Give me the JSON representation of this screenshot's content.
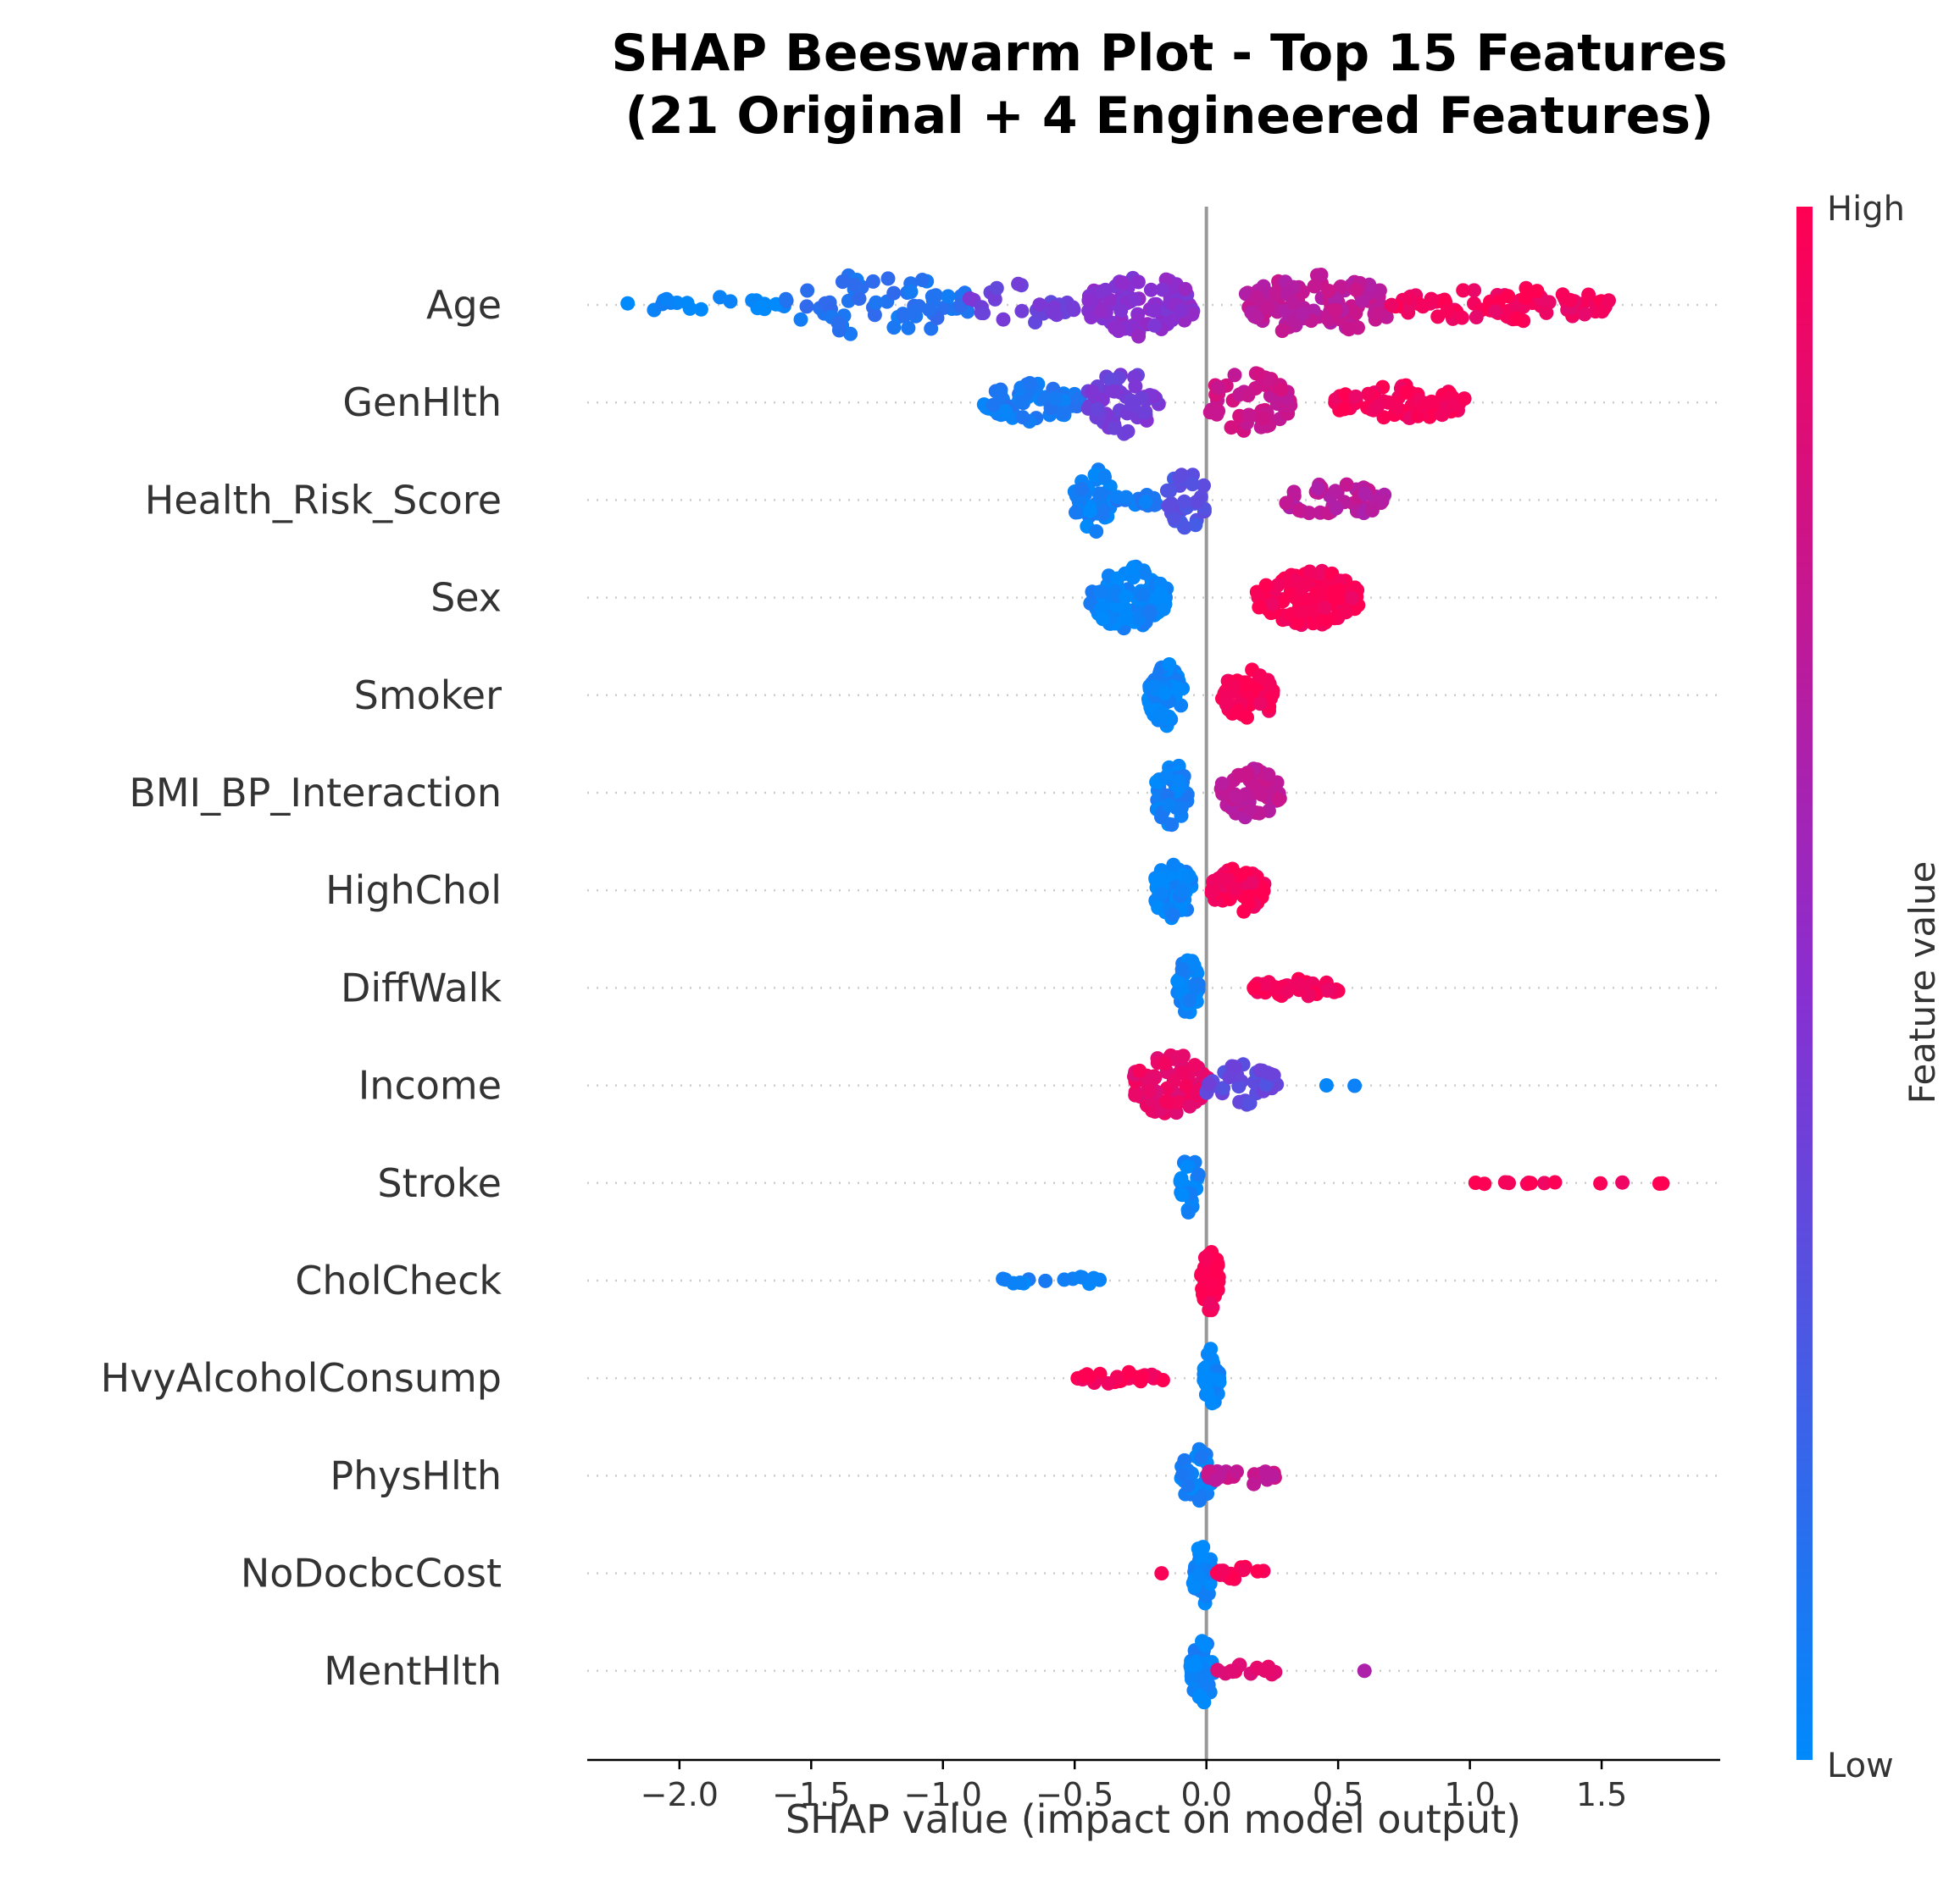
{
  "colors": {
    "low": "#008afb",
    "mid": "#8a2ed0",
    "high": "#ff0052",
    "axis": "#333333",
    "zero_line": "#999999",
    "row_dots": "#cccccc"
  },
  "chart_data": {
    "type": "scatter",
    "subtype": "shap-beeswarm",
    "title_lines": [
      "SHAP Beeswarm Plot - Top 15 Features",
      "(21 Original + 4 Engineered Features)"
    ],
    "xlabel": "SHAP value (impact on model output)",
    "xlim": [
      -2.35,
      1.95
    ],
    "xticks": [
      -2.0,
      -1.5,
      -1.0,
      -0.5,
      0.0,
      0.5,
      1.0,
      1.5
    ],
    "xtick_labels": [
      "−2.0",
      "−1.5",
      "−1.0",
      "−0.5",
      "0.0",
      "0.5",
      "1.0",
      "1.5"
    ],
    "colorbar": {
      "label": "Feature value",
      "high_label": "High",
      "low_label": "Low"
    },
    "features": [
      {
        "name": "Age",
        "groups": [
          {
            "from": -2.2,
            "to": -1.6,
            "n": 22,
            "spread": 0.3,
            "c": 0.02
          },
          {
            "from": -1.6,
            "to": -0.9,
            "n": 60,
            "spread": 1.0,
            "c": 0.12
          },
          {
            "from": -0.9,
            "to": -0.5,
            "n": 30,
            "spread": 0.7,
            "c": 0.4
          },
          {
            "from": -0.45,
            "to": -0.05,
            "n": 90,
            "spread": 1.0,
            "c": 0.5
          },
          {
            "from": 0.15,
            "to": 0.7,
            "n": 110,
            "spread": 1.0,
            "c": 0.72
          },
          {
            "from": 0.7,
            "to": 1.55,
            "n": 90,
            "spread": 0.55,
            "c": 0.95
          }
        ]
      },
      {
        "name": "GenHlth",
        "groups": [
          {
            "from": -0.85,
            "to": -0.48,
            "n": 60,
            "spread": 0.6,
            "c": 0.08
          },
          {
            "from": -0.45,
            "to": -0.18,
            "n": 55,
            "spread": 1.0,
            "c": 0.42
          },
          {
            "from": 0.0,
            "to": 0.32,
            "n": 60,
            "spread": 0.95,
            "c": 0.78
          },
          {
            "from": 0.48,
            "to": 0.99,
            "n": 75,
            "spread": 0.55,
            "c": 0.97
          }
        ]
      },
      {
        "name": "Health_Risk_Score",
        "groups": [
          {
            "from": -0.5,
            "to": -0.35,
            "n": 45,
            "spread": 1.0,
            "c": 0.05
          },
          {
            "from": -0.35,
            "to": -0.15,
            "n": 15,
            "spread": 0.2,
            "c": 0.08
          },
          {
            "from": -0.15,
            "to": 0.0,
            "n": 30,
            "spread": 0.95,
            "c": 0.3
          },
          {
            "from": 0.3,
            "to": 0.68,
            "n": 45,
            "spread": 0.55,
            "c": 0.7
          }
        ]
      },
      {
        "name": "Sex",
        "groups": [
          {
            "from": -0.45,
            "to": -0.15,
            "n": 110,
            "spread": 1.0,
            "c": 0.03
          },
          {
            "from": 0.19,
            "to": 0.58,
            "n": 110,
            "spread": 0.9,
            "c": 0.98
          }
        ]
      },
      {
        "name": "Smoker",
        "groups": [
          {
            "from": -0.22,
            "to": -0.09,
            "n": 60,
            "spread": 1.0,
            "c": 0.03
          },
          {
            "from": 0.06,
            "to": 0.26,
            "n": 60,
            "spread": 0.85,
            "c": 0.97
          }
        ]
      },
      {
        "name": "BMI_BP_Interaction",
        "groups": [
          {
            "from": -0.2,
            "to": -0.07,
            "n": 55,
            "spread": 1.0,
            "c": 0.05
          },
          {
            "from": 0.05,
            "to": 0.28,
            "n": 50,
            "spread": 0.8,
            "c": 0.72
          }
        ]
      },
      {
        "name": "HighChol",
        "groups": [
          {
            "from": -0.2,
            "to": -0.05,
            "n": 55,
            "spread": 1.0,
            "c": 0.03
          },
          {
            "from": 0.02,
            "to": 0.22,
            "n": 60,
            "spread": 0.7,
            "c": 0.97
          }
        ]
      },
      {
        "name": "DiffWalk",
        "groups": [
          {
            "from": -0.11,
            "to": -0.03,
            "n": 45,
            "spread": 1.0,
            "c": 0.03
          },
          {
            "from": 0.18,
            "to": 0.5,
            "n": 45,
            "spread": 0.3,
            "c": 0.97
          }
        ]
      },
      {
        "name": "Income",
        "groups": [
          {
            "from": -0.28,
            "to": 0.02,
            "n": 80,
            "spread": 1.0,
            "c": 0.9
          },
          {
            "from": 0.0,
            "to": 0.27,
            "n": 40,
            "spread": 0.7,
            "c": 0.35
          },
          {
            "from": 0.45,
            "to": 0.57,
            "n": 2,
            "spread": 0.05,
            "c": 0.02
          }
        ]
      },
      {
        "name": "Stroke",
        "groups": [
          {
            "from": -0.1,
            "to": -0.03,
            "n": 30,
            "spread": 1.0,
            "c": 0.02
          },
          {
            "from": 1.0,
            "to": 1.74,
            "n": 14,
            "spread": 0.05,
            "c": 0.98
          }
        ]
      },
      {
        "name": "CholCheck",
        "groups": [
          {
            "from": -0.78,
            "to": -0.36,
            "n": 14,
            "spread": 0.15,
            "c": 0.04
          },
          {
            "from": -0.02,
            "to": 0.05,
            "n": 40,
            "spread": 1.0,
            "c": 0.98
          }
        ]
      },
      {
        "name": "HvyAlcoholConsump",
        "groups": [
          {
            "from": -0.5,
            "to": -0.16,
            "n": 30,
            "spread": 0.2,
            "c": 0.98
          },
          {
            "from": -0.01,
            "to": 0.05,
            "n": 40,
            "spread": 1.0,
            "c": 0.03
          }
        ]
      },
      {
        "name": "PhysHlth",
        "groups": [
          {
            "from": -0.1,
            "to": 0.02,
            "n": 35,
            "spread": 1.0,
            "c": 0.05
          },
          {
            "from": 0.0,
            "to": 0.26,
            "n": 25,
            "spread": 0.3,
            "c": 0.75
          }
        ]
      },
      {
        "name": "NoDocbcCost",
        "groups": [
          {
            "from": -0.05,
            "to": 0.02,
            "n": 40,
            "spread": 1.0,
            "c": 0.02
          },
          {
            "from": 0.04,
            "to": 0.22,
            "n": 15,
            "spread": 0.2,
            "c": 0.98
          },
          {
            "from": -0.17,
            "to": -0.17,
            "n": 1,
            "spread": 0.0,
            "c": 0.98
          }
        ]
      },
      {
        "name": "MentHlth",
        "groups": [
          {
            "from": -0.06,
            "to": 0.03,
            "n": 40,
            "spread": 1.0,
            "c": 0.03
          },
          {
            "from": 0.04,
            "to": 0.28,
            "n": 18,
            "spread": 0.2,
            "c": 0.9
          },
          {
            "from": 0.6,
            "to": 0.6,
            "n": 1,
            "spread": 0.0,
            "c": 0.6
          }
        ]
      }
    ]
  }
}
